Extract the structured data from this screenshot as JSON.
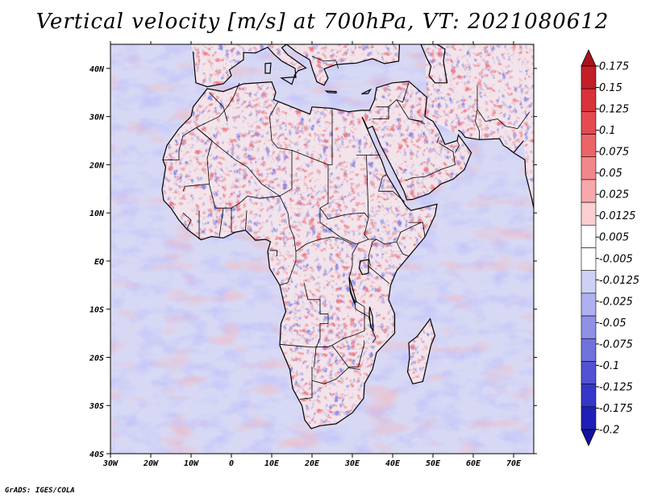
{
  "title": "Vertical velocity [m/s] at 700hPa, VT: 2021080612",
  "credit": "GrADS: IGES/COLA",
  "colors": {
    "ocean_base": "#d7d9f4",
    "land_base": "#f2e4ea",
    "coast": "#000000",
    "updraft": "#d8323a",
    "downdraft": "#2a2ad0"
  },
  "map": {
    "lon_range": [
      -30,
      75
    ],
    "lat_range": [
      -40,
      45
    ],
    "x_tick_labels": [
      "30W",
      "20W",
      "10W",
      "0",
      "10E",
      "20E",
      "30E",
      "40E",
      "50E",
      "60E",
      "70E"
    ],
    "x_tick_values": [
      -30,
      -20,
      -10,
      0,
      10,
      20,
      30,
      40,
      50,
      60,
      70
    ],
    "y_tick_labels": [
      "40N",
      "30N",
      "20N",
      "10N",
      "EQ",
      "10S",
      "20S",
      "30S",
      "40S"
    ],
    "y_tick_values": [
      40,
      30,
      20,
      10,
      0,
      -10,
      -20,
      -30,
      -40
    ]
  },
  "colorbar": {
    "labels": [
      "0.175",
      "0.15",
      "0.125",
      "0.1",
      "0.075",
      "0.05",
      "0.025",
      "0.0125",
      "0.005",
      "-0.005",
      "-0.0125",
      "-0.025",
      "-0.05",
      "-0.075",
      "-0.1",
      "-0.125",
      "-0.175",
      "-0.2"
    ],
    "colors": [
      "#a8141c",
      "#c21f27",
      "#d8323a",
      "#e44a50",
      "#ec6468",
      "#f2878a",
      "#f6a8aa",
      "#fbcfd0",
      "#ffffff",
      "#ffffff",
      "#cfd0f6",
      "#aeb0f0",
      "#8f90e6",
      "#7072dc",
      "#5253d2",
      "#3536c8",
      "#1f1fb8",
      "#1212a0"
    ]
  }
}
